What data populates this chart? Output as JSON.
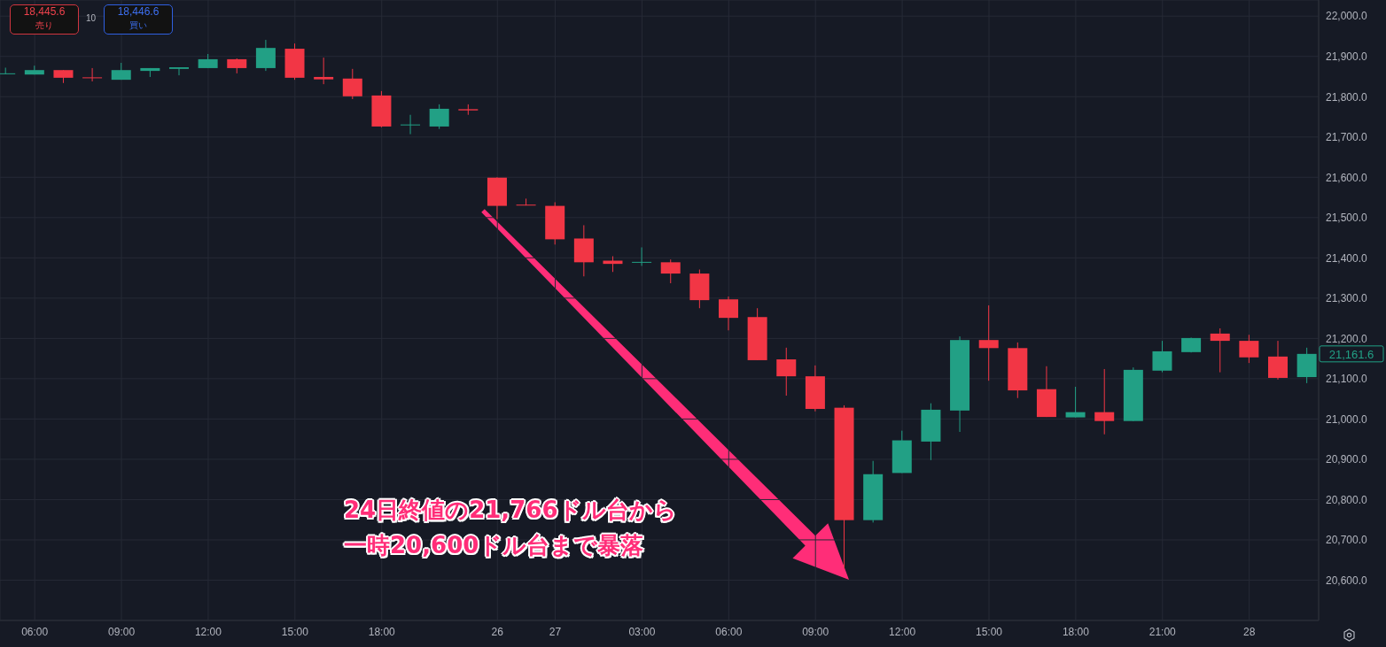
{
  "chart_data": {
    "type": "candlestick",
    "categories": [
      null,
      "06:00",
      null,
      null,
      "09:00",
      null,
      null,
      "12:00",
      null,
      null,
      "15:00",
      null,
      null,
      "18:00",
      null,
      null,
      null,
      "26",
      null,
      "27",
      null,
      null,
      "03:00",
      null,
      null,
      "06:00",
      null,
      null,
      "09:00",
      null,
      null,
      "12:00",
      null,
      null,
      "15:00",
      null,
      null,
      "18:00",
      null,
      null,
      "21:00",
      null,
      null,
      "28",
      null,
      null
    ],
    "ohlc": [
      [
        21857,
        21872,
        21856,
        21858
      ],
      [
        21855,
        21877,
        21855,
        21866
      ],
      [
        21866,
        21866,
        21834,
        21847
      ],
      [
        21848,
        21871,
        21838,
        21846
      ],
      [
        21842,
        21884,
        21842,
        21866
      ],
      [
        21864,
        21871,
        21849,
        21871
      ],
      [
        21869,
        21873,
        21853,
        21873
      ],
      [
        21871,
        21906,
        21871,
        21893
      ],
      [
        21893,
        21895,
        21858,
        21871
      ],
      [
        21871,
        21941,
        21864,
        21921
      ],
      [
        21919,
        21932,
        21842,
        21847
      ],
      [
        21849,
        21897,
        21831,
        21843
      ],
      [
        21845,
        21869,
        21794,
        21801
      ],
      [
        21803,
        21814,
        21724,
        21726
      ],
      [
        21729,
        21755,
        21707,
        21731
      ],
      [
        21726,
        21781,
        21720,
        21770
      ],
      [
        21769,
        21781,
        21755,
        21766
      ],
      [
        21599,
        21600,
        21496,
        21529
      ],
      [
        21532,
        21547,
        21530,
        21530
      ],
      [
        21529,
        21538,
        21433,
        21446
      ],
      [
        21448,
        21481,
        21354,
        21389
      ],
      [
        21393,
        21404,
        21365,
        21385
      ],
      [
        21388,
        21426,
        21380,
        21390
      ],
      [
        21389,
        21396,
        21337,
        21361
      ],
      [
        21361,
        21371,
        21275,
        21295
      ],
      [
        21297,
        21304,
        21220,
        21251
      ],
      [
        21253,
        21275,
        21146,
        21146
      ],
      [
        21148,
        21177,
        21058,
        21106
      ],
      [
        21106,
        21133,
        21019,
        21025
      ],
      [
        21028,
        21034,
        20629,
        20749
      ],
      [
        20749,
        20896,
        20743,
        20863
      ],
      [
        20866,
        20971,
        20866,
        20947
      ],
      [
        20944,
        21039,
        20898,
        21023
      ],
      [
        21021,
        21205,
        20968,
        21196
      ],
      [
        21196,
        21282,
        21095,
        21176
      ],
      [
        21176,
        21190,
        21052,
        21071
      ],
      [
        21074,
        21131,
        21005,
        21005
      ],
      [
        21004,
        21080,
        21004,
        21017
      ],
      [
        21017,
        21124,
        20962,
        20995
      ],
      [
        20995,
        21128,
        20995,
        21122
      ],
      [
        21120,
        21194,
        21116,
        21168
      ],
      [
        21166,
        21202,
        21165,
        21201
      ],
      [
        21212,
        21225,
        21116,
        21194
      ],
      [
        21194,
        21209,
        21139,
        21153
      ],
      [
        21155,
        21194,
        21098,
        21102
      ],
      [
        21104,
        21177,
        21089,
        21161.6
      ]
    ],
    "colors": [
      "#22a085",
      "#22a085",
      "#f23645",
      "#f23645",
      "#22a085",
      "#22a085",
      "#22a085",
      "#22a085",
      "#f23645",
      "#22a085",
      "#f23645",
      "#f23645",
      "#f23645",
      "#f23645",
      "#22a085",
      "#22a085",
      "#f23645",
      "#f23645",
      "#f23645",
      "#f23645",
      "#f23645",
      "#f23645",
      "#22a085",
      "#f23645",
      "#f23645",
      "#f23645",
      "#f23645",
      "#f23645",
      "#f23645",
      "#f23645",
      "#22a085",
      "#22a085",
      "#22a085",
      "#22a085",
      "#f23645",
      "#f23645",
      "#f23645",
      "#22a085",
      "#f23645",
      "#22a085",
      "#22a085",
      "#22a085",
      "#f23645",
      "#f23645",
      "#f23645",
      "#22a085"
    ],
    "ylim": [
      20500,
      22040
    ],
    "yticks": [
      {
        "value": 20600,
        "label": "20,600.0"
      },
      {
        "value": 20700,
        "label": "20,700.0"
      },
      {
        "value": 20800,
        "label": "20,800.0"
      },
      {
        "value": 20900,
        "label": "20,900.0"
      },
      {
        "value": 21000,
        "label": "21,000.0"
      },
      {
        "value": 21100,
        "label": "21,100.0"
      },
      {
        "value": 21200,
        "label": "21,200.0"
      },
      {
        "value": 21300,
        "label": "21,300.0"
      },
      {
        "value": 21400,
        "label": "21,400.0"
      },
      {
        "value": 21500,
        "label": "21,500.0"
      },
      {
        "value": 21600,
        "label": "21,600.0"
      },
      {
        "value": 21700,
        "label": "21,700.0"
      },
      {
        "value": 21800,
        "label": "21,800.0"
      },
      {
        "value": 21900,
        "label": "21,900.0"
      },
      {
        "value": 22000,
        "label": "22,000.0"
      }
    ],
    "grid": true,
    "annotations": [
      "24日終値の21,766ドル台から",
      "一時20,600ドル台まで暴落",
      "18,445.6\n売り",
      "10",
      "18,446.6\n買い",
      "21,161.6"
    ]
  }
}
